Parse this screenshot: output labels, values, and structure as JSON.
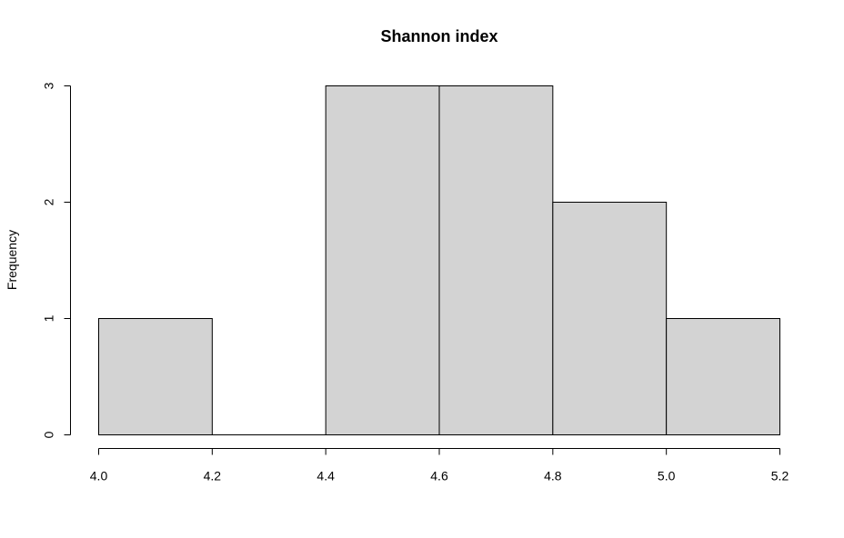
{
  "chart_data": {
    "type": "bar",
    "subtype": "histogram",
    "title": "Shannon index",
    "xlabel": "",
    "ylabel": "Frequency",
    "bins": [
      {
        "start": 4.0,
        "end": 4.2,
        "count": 1
      },
      {
        "start": 4.2,
        "end": 4.4,
        "count": 0
      },
      {
        "start": 4.4,
        "end": 4.6,
        "count": 3
      },
      {
        "start": 4.6,
        "end": 4.8,
        "count": 3
      },
      {
        "start": 4.8,
        "end": 5.0,
        "count": 2
      },
      {
        "start": 5.0,
        "end": 5.2,
        "count": 1
      }
    ],
    "xlim": [
      4.0,
      5.2
    ],
    "ylim": [
      0,
      3
    ],
    "x_ticks": [
      "4.0",
      "4.2",
      "4.4",
      "4.6",
      "4.8",
      "5.0",
      "5.2"
    ],
    "y_ticks": [
      "0",
      "1",
      "2",
      "3"
    ],
    "grid": false,
    "legend": "none",
    "colors": {
      "bar_fill": "#d3d3d3",
      "bar_stroke": "#000000",
      "axis": "#000000"
    }
  }
}
